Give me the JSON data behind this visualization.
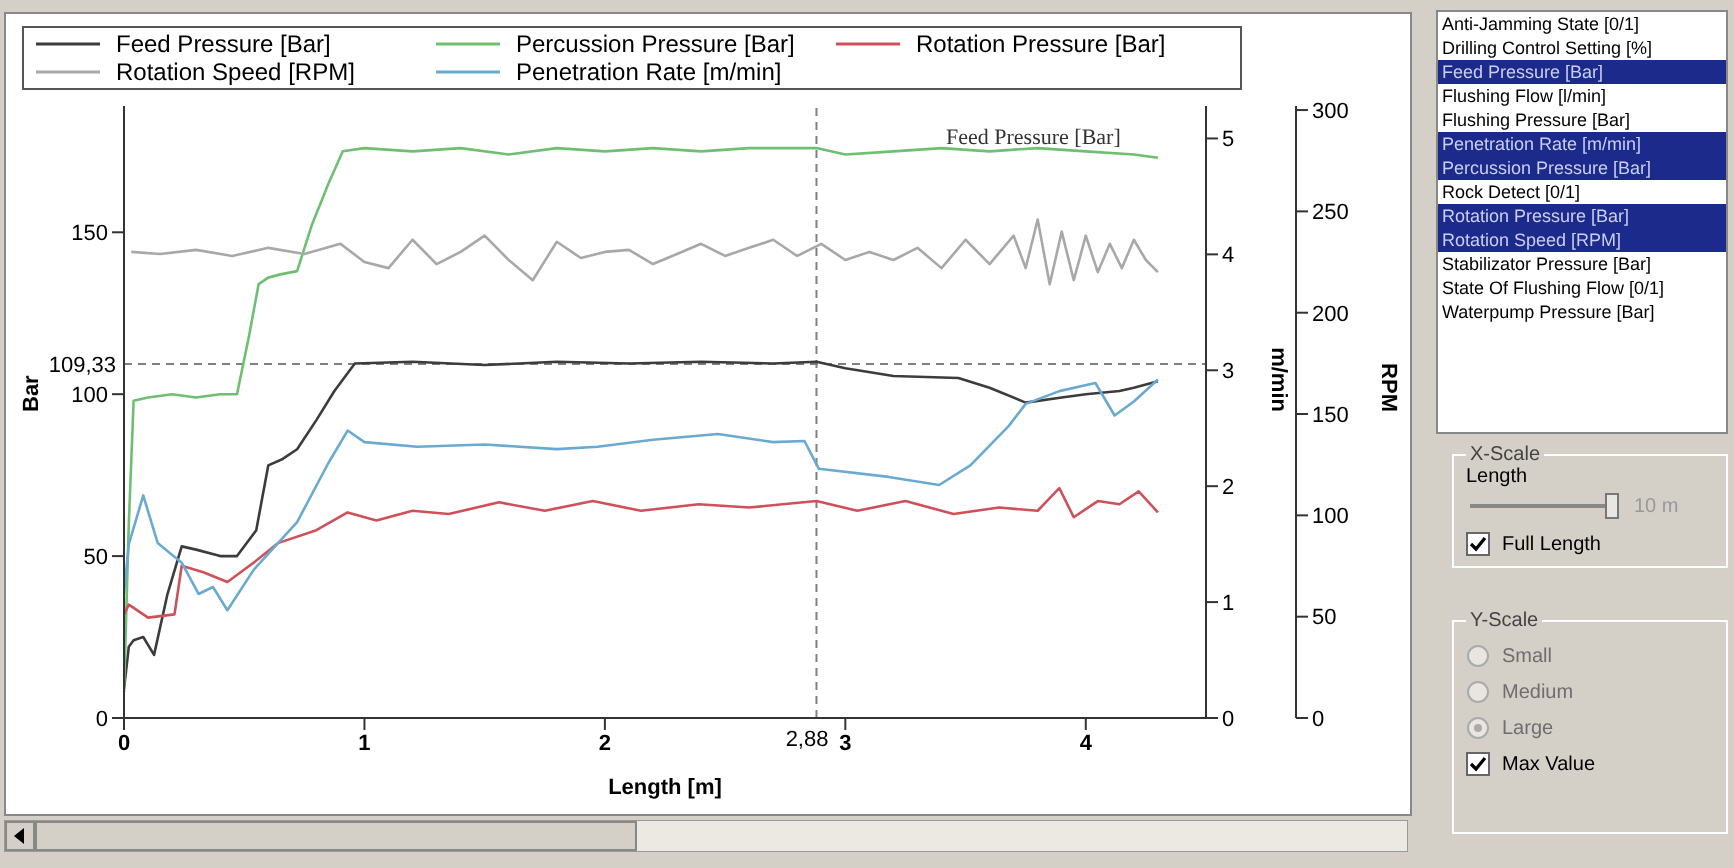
{
  "chart_data": {
    "type": "line",
    "xlabel": "Length [m]",
    "ylabel": "Bar",
    "y2label": "m/min",
    "y3label": "RPM",
    "xlim": [
      0,
      4.5
    ],
    "xticks": [
      0,
      1,
      2,
      3,
      4
    ],
    "ylim": [
      0,
      189
    ],
    "yticks": [
      0,
      50,
      100,
      150
    ],
    "y2lim": [
      0,
      5.28
    ],
    "y2ticks": [
      0,
      1,
      2,
      3,
      4,
      5
    ],
    "y3lim": [
      0,
      302
    ],
    "y3ticks": [
      0,
      50,
      100,
      150,
      200,
      250,
      300
    ],
    "legend": "top",
    "marker": "none",
    "line_style": "solid",
    "ref_lines": [
      {
        "axis": "y",
        "value": 109.33,
        "label": "109,33",
        "line_style": "dashed",
        "color": "#808080"
      },
      {
        "axis": "x",
        "value": 2.88,
        "label": "2,88",
        "line_style": "dashed",
        "color": "#808080"
      }
    ],
    "series": [
      {
        "name": "Feed Pressure [Bar]",
        "color": "#3c3c3c",
        "x": [
          0,
          0.02,
          0.04,
          0.08,
          0.125,
          0.18,
          0.24,
          0.3,
          0.4,
          0.47,
          0.55,
          0.6,
          0.66,
          0.72,
          0.8,
          0.875,
          0.96,
          1.2,
          1.5,
          1.8,
          2.1,
          2.4,
          2.7,
          2.88,
          3.0,
          3.2,
          3.47,
          3.6,
          3.75,
          3.9,
          4.0,
          4.14,
          4.2,
          4.3
        ],
        "values": [
          9,
          22,
          24,
          25,
          19.5,
          38,
          53,
          52,
          50,
          50,
          58,
          78,
          80,
          83,
          92,
          101,
          109.5,
          110,
          109,
          110,
          109.5,
          110,
          109.5,
          110,
          108,
          105.6,
          105,
          102,
          97.4,
          99,
          100,
          101,
          102,
          104
        ]
      },
      {
        "name": "Percussion Pressure [Bar]",
        "color": "#6fbf73",
        "x": [
          0,
          0.02,
          0.04,
          0.1,
          0.2,
          0.3,
          0.4,
          0.47,
          0.52,
          0.56,
          0.6,
          0.65,
          0.72,
          0.78,
          0.85,
          0.91,
          1.0,
          1.2,
          1.4,
          1.6,
          1.8,
          2.0,
          2.2,
          2.4,
          2.6,
          2.88,
          3.0,
          3.2,
          3.4,
          3.6,
          3.8,
          4.0,
          4.2,
          4.3
        ],
        "values": [
          8,
          60,
          98,
          99,
          100,
          99,
          100,
          100,
          118,
          134,
          136,
          137,
          138,
          152,
          165,
          175,
          176,
          175,
          176,
          174,
          176,
          175,
          176,
          175,
          176,
          176,
          174,
          175,
          176,
          175,
          176,
          175,
          174,
          173
        ]
      },
      {
        "name": "Rotation Pressure [Bar]",
        "color": "#d0505a",
        "x": [
          0,
          0.02,
          0.1,
          0.21,
          0.24,
          0.33,
          0.43,
          0.54,
          0.64,
          0.8,
          0.93,
          1.05,
          1.2,
          1.35,
          1.56,
          1.75,
          1.95,
          2.15,
          2.39,
          2.6,
          2.88,
          3.05,
          3.25,
          3.45,
          3.64,
          3.8,
          3.89,
          3.95,
          4.05,
          4.14,
          4.22,
          4.3
        ],
        "values": [
          32,
          35,
          31,
          32,
          47,
          45,
          42,
          48,
          54,
          58,
          63.5,
          61,
          64,
          63,
          66.6,
          64,
          67,
          64,
          66,
          65,
          67,
          64,
          67,
          63,
          65,
          64,
          71,
          62,
          67,
          66,
          70,
          63.5
        ]
      },
      {
        "name": "Rotation Speed [RPM]",
        "color": "#a8a8a8",
        "axis": "y3",
        "x": [
          0.03,
          0.15,
          0.3,
          0.45,
          0.6,
          0.75,
          0.9,
          1.0,
          1.1,
          1.2,
          1.3,
          1.4,
          1.5,
          1.6,
          1.7,
          1.8,
          1.9,
          2.0,
          2.1,
          2.2,
          2.3,
          2.4,
          2.5,
          2.6,
          2.7,
          2.8,
          2.9,
          3.0,
          3.1,
          3.2,
          3.3,
          3.4,
          3.5,
          3.6,
          3.7,
          3.75,
          3.8,
          3.85,
          3.9,
          3.95,
          4.0,
          4.05,
          4.1,
          4.15,
          4.2,
          4.25,
          4.3
        ],
        "values": [
          230,
          229,
          231,
          228,
          232,
          229,
          234,
          225,
          222,
          236,
          224,
          230,
          238,
          226,
          216,
          235,
          227,
          230,
          231,
          224,
          229,
          234,
          228,
          232,
          236,
          228,
          234,
          226,
          230,
          226,
          232,
          222,
          236,
          224,
          238,
          222,
          246,
          214,
          240,
          216,
          238,
          220,
          234,
          222,
          236,
          226,
          220
        ]
      },
      {
        "name": "Penetration Rate [m/min]",
        "color": "#6aaad0",
        "axis": "y2",
        "x": [
          0,
          0.02,
          0.08,
          0.14,
          0.24,
          0.31,
          0.37,
          0.43,
          0.54,
          0.72,
          0.85,
          0.93,
          1.0,
          1.22,
          1.5,
          1.8,
          1.97,
          2.2,
          2.47,
          2.7,
          2.83,
          2.89,
          3.18,
          3.39,
          3.52,
          3.68,
          3.75,
          3.89,
          4.04,
          4.12,
          4.2,
          4.3
        ],
        "values": [
          1.07,
          1.5,
          1.92,
          1.51,
          1.34,
          1.07,
          1.13,
          0.93,
          1.28,
          1.69,
          2.2,
          2.48,
          2.38,
          2.34,
          2.36,
          2.32,
          2.34,
          2.4,
          2.45,
          2.38,
          2.39,
          2.15,
          2.08,
          2.01,
          2.18,
          2.52,
          2.71,
          2.82,
          2.89,
          2.61,
          2.73,
          2.92
        ]
      }
    ],
    "annotations": [
      "Feed Pressure [Bar]",
      "Anti-Jamming State [0/1]",
      "Drilling Control Setting [%]",
      "Feed Pressure [Bar]",
      "Flushing Flow [l/min]",
      "Flushing Pressure [Bar]",
      "Penetration Rate [m/min]",
      "Percussion Pressure [Bar]",
      "Rock Detect [0/1]",
      "Rotation Pressure [Bar]",
      "Rotation Speed [RPM]",
      "Stabilizator Pressure [Bar]",
      "State Of Flushing Flow [0/1]",
      "Waterpump Pressure [Bar]",
      "X-Scale",
      "Length",
      "10 m",
      "Full Length",
      "Y-Scale",
      "Small",
      "Medium",
      "Large",
      "Max Value"
    ]
  }
}
